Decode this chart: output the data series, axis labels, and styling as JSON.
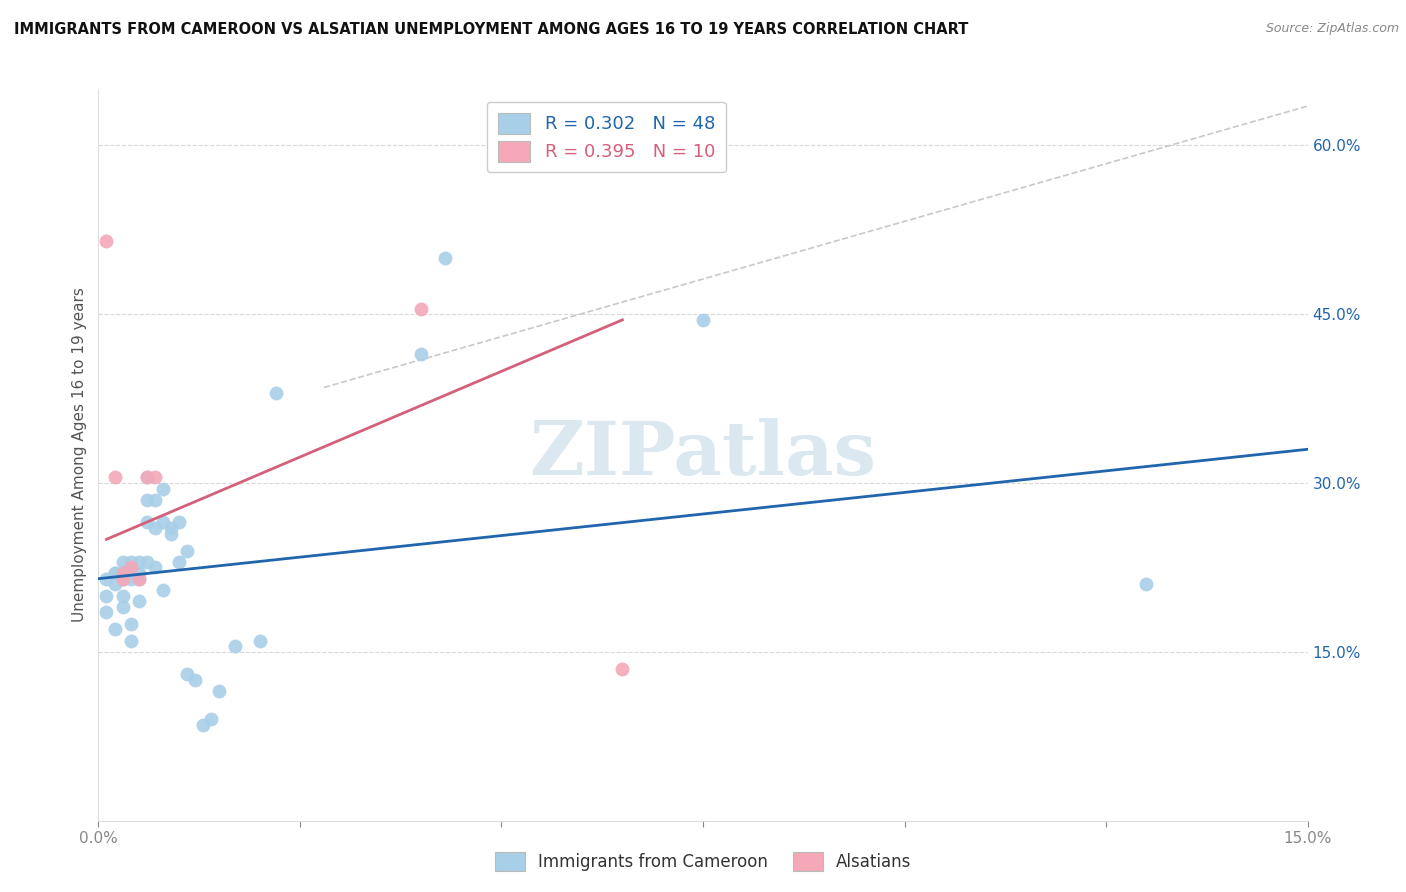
{
  "title": "IMMIGRANTS FROM CAMEROON VS ALSATIAN UNEMPLOYMENT AMONG AGES 16 TO 19 YEARS CORRELATION CHART",
  "source": "Source: ZipAtlas.com",
  "ylabel": "Unemployment Among Ages 16 to 19 years",
  "xlim": [
    0.0,
    0.15
  ],
  "ylim": [
    0.0,
    0.65
  ],
  "xtick_positions": [
    0.0,
    0.025,
    0.05,
    0.075,
    0.1,
    0.125,
    0.15
  ],
  "xtick_labels": [
    "0.0%",
    "",
    "",
    "",
    "",
    "",
    "15.0%"
  ],
  "ytick_right_positions": [
    0.15,
    0.3,
    0.45,
    0.6
  ],
  "ytick_right_labels": [
    "15.0%",
    "30.0%",
    "45.0%",
    "60.0%"
  ],
  "legend_blue_label": "R = 0.302   N = 48",
  "legend_pink_label": "R = 0.395   N = 10",
  "legend_bottom_blue": "Immigrants from Cameroon",
  "legend_bottom_pink": "Alsatians",
  "blue_color": "#a8cfe8",
  "pink_color": "#f4a8b8",
  "blue_line_color": "#2166ac",
  "pink_line_color": "#d4607a",
  "dashed_line_color": "#c8c8c8",
  "watermark_color": "#dce8f0",
  "blue_scatter_x": [
    0.001,
    0.001,
    0.001,
    0.002,
    0.002,
    0.002,
    0.002,
    0.003,
    0.003,
    0.003,
    0.003,
    0.003,
    0.004,
    0.004,
    0.004,
    0.004,
    0.004,
    0.005,
    0.005,
    0.005,
    0.005,
    0.006,
    0.006,
    0.006,
    0.006,
    0.007,
    0.007,
    0.007,
    0.008,
    0.008,
    0.008,
    0.009,
    0.009,
    0.01,
    0.01,
    0.011,
    0.011,
    0.012,
    0.013,
    0.014,
    0.015,
    0.017,
    0.02,
    0.022,
    0.04,
    0.043,
    0.075,
    0.13
  ],
  "blue_scatter_y": [
    0.215,
    0.2,
    0.185,
    0.22,
    0.22,
    0.21,
    0.17,
    0.22,
    0.23,
    0.215,
    0.2,
    0.19,
    0.22,
    0.23,
    0.215,
    0.175,
    0.16,
    0.215,
    0.23,
    0.22,
    0.195,
    0.305,
    0.285,
    0.265,
    0.23,
    0.285,
    0.26,
    0.225,
    0.295,
    0.265,
    0.205,
    0.26,
    0.255,
    0.265,
    0.23,
    0.24,
    0.13,
    0.125,
    0.085,
    0.09,
    0.115,
    0.155,
    0.16,
    0.38,
    0.415,
    0.5,
    0.445,
    0.21
  ],
  "pink_scatter_x": [
    0.001,
    0.002,
    0.003,
    0.003,
    0.004,
    0.005,
    0.006,
    0.007,
    0.04,
    0.065
  ],
  "pink_scatter_y": [
    0.515,
    0.305,
    0.215,
    0.22,
    0.225,
    0.215,
    0.305,
    0.305,
    0.455,
    0.135
  ],
  "blue_line_x0": 0.0,
  "blue_line_y0": 0.215,
  "blue_line_x1": 0.15,
  "blue_line_y1": 0.33,
  "pink_line_x0": 0.001,
  "pink_line_y0": 0.25,
  "pink_line_x1": 0.065,
  "pink_line_y1": 0.445,
  "dashed_line_x0": 0.028,
  "dashed_line_y0": 0.385,
  "dashed_line_x1": 0.15,
  "dashed_line_y1": 0.635
}
